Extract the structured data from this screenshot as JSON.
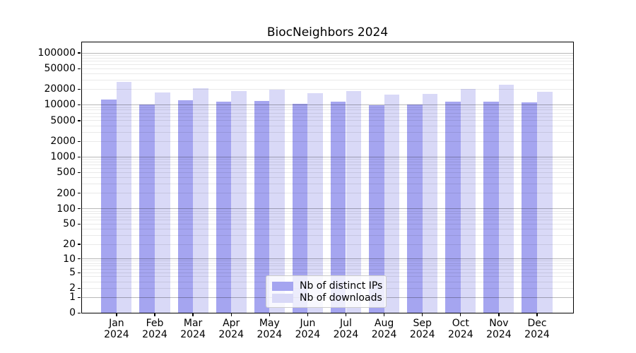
{
  "title": "BiocNeighbors 2024",
  "chart_data": {
    "type": "bar",
    "title": "BiocNeighbors 2024",
    "categories": [
      "Jan",
      "Feb",
      "Mar",
      "Apr",
      "May",
      "Jun",
      "Jul",
      "Aug",
      "Sep",
      "Oct",
      "Nov",
      "Dec"
    ],
    "year": "2024",
    "series": [
      {
        "name": "Nb of distinct IPs",
        "color": "#a5a5f0",
        "values": [
          12800,
          10100,
          12200,
          11500,
          12000,
          10600,
          11700,
          9800,
          10300,
          11700,
          11500,
          11100
        ]
      },
      {
        "name": "Nb of downloads",
        "color": "#d9d9f7",
        "values": [
          28000,
          17200,
          20700,
          18300,
          19900,
          16800,
          18700,
          16000,
          16500,
          20100,
          24300,
          17800
        ]
      }
    ],
    "xlabel": "",
    "ylabel": "",
    "yscale": "log1p",
    "ylim": [
      0,
      165000
    ],
    "yticks": [
      0,
      1,
      2,
      5,
      10,
      20,
      50,
      100,
      200,
      500,
      1000,
      2000,
      5000,
      10000,
      20000,
      50000,
      100000
    ],
    "grid": true,
    "legend_position": "lower-center"
  }
}
